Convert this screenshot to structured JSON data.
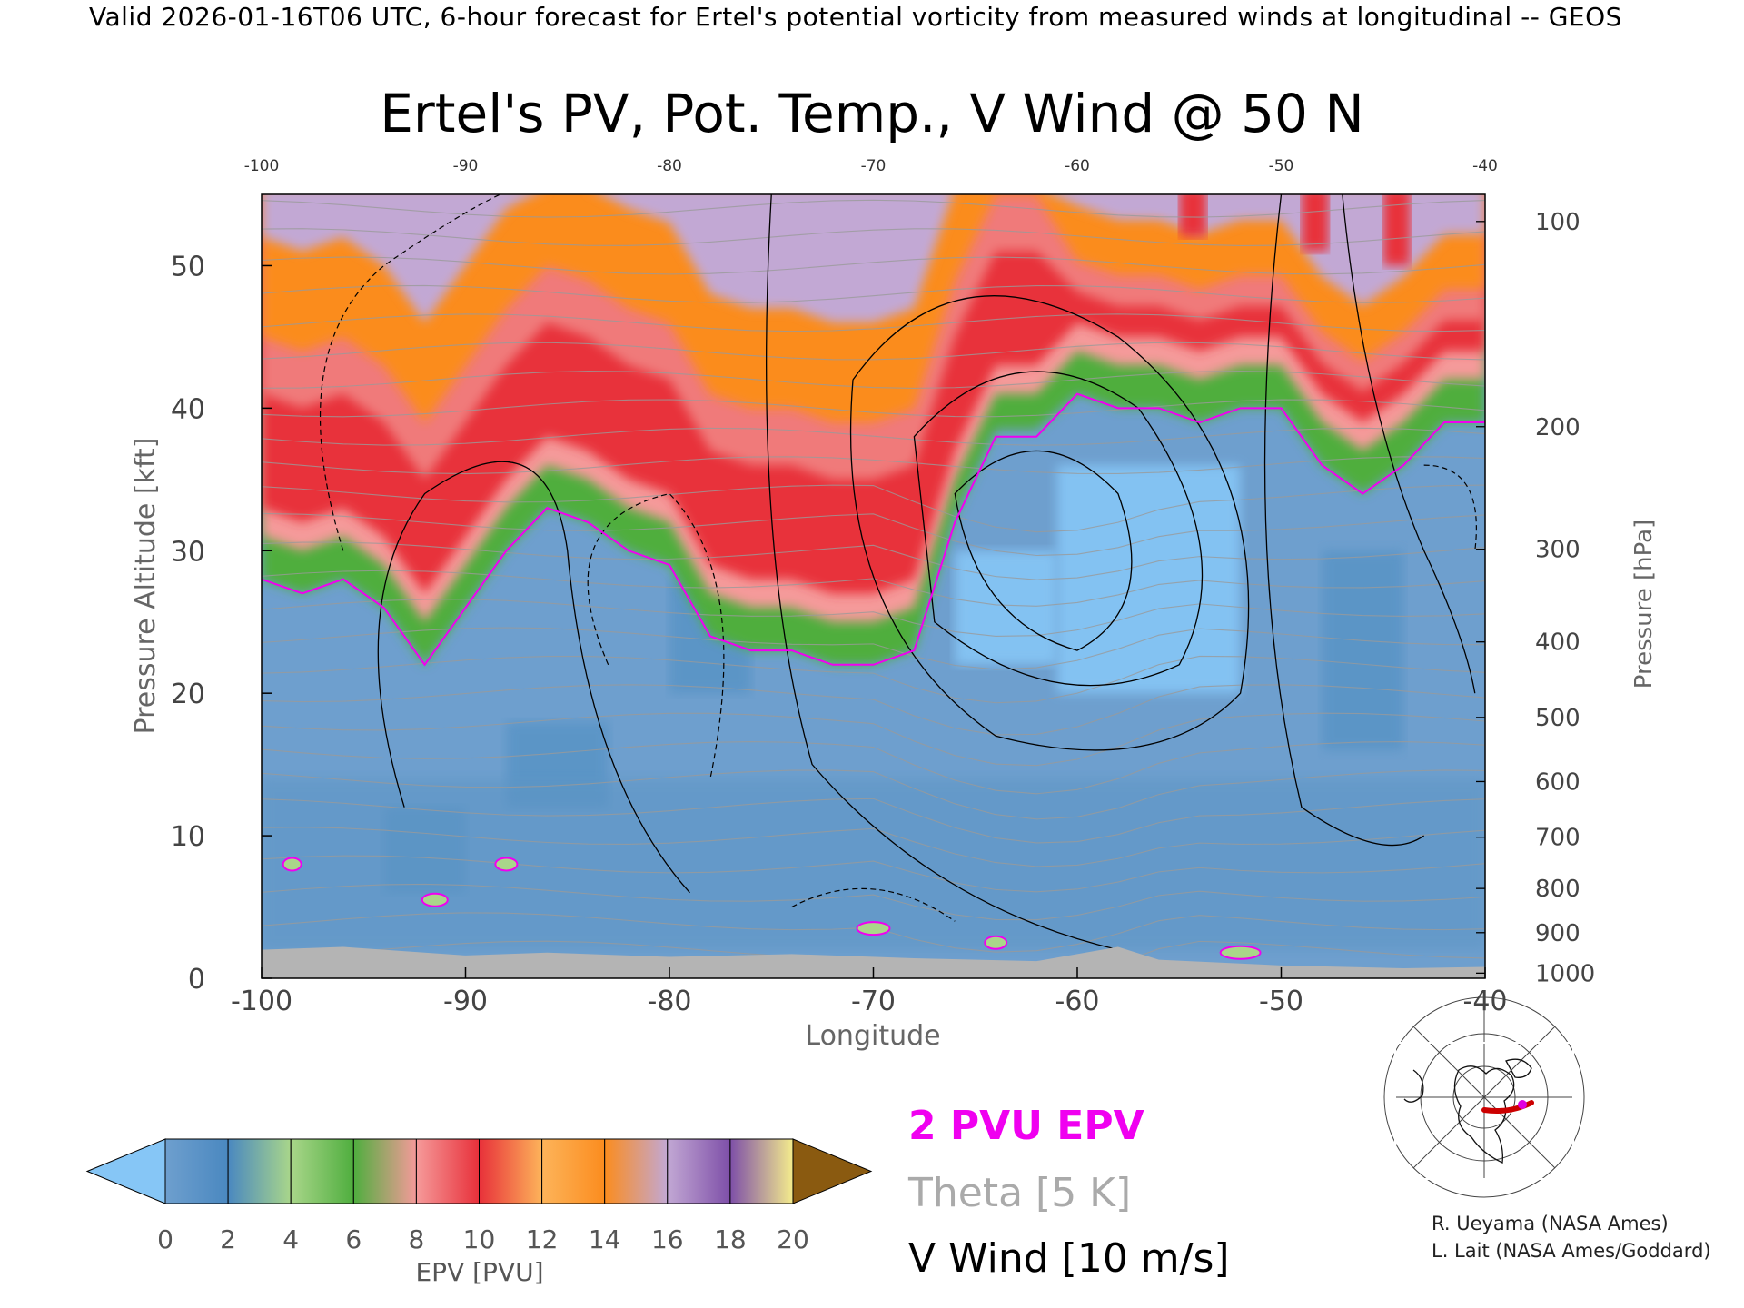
{
  "header": {
    "text": "Valid 2026-01-16T06 UTC, 6-hour forecast for Ertel's potential vorticity from measured winds at longitudinal -- GEOS"
  },
  "chart_data": {
    "type": "heatmap",
    "title": "Ertel's PV, Pot. Temp., V Wind @ 50 N",
    "xlabel": "Longitude",
    "ylabel": "Pressure Altitude [kft]",
    "y2label": "Pressure [hPa]",
    "xlim": [
      -100,
      -40
    ],
    "ylim": [
      0,
      55
    ],
    "x_ticks": [
      "-100",
      "-90",
      "-80",
      "-70",
      "-60",
      "-50",
      "-40"
    ],
    "x_ticks_top": [
      "-100",
      "-90",
      "-80",
      "-70",
      "-60",
      "-50",
      "-40"
    ],
    "y_ticks": [
      "0",
      "10",
      "20",
      "30",
      "40",
      "50"
    ],
    "pressure_ticks": [
      {
        "hPa": 1000,
        "kft": 0.36
      },
      {
        "hPa": 900,
        "kft": 3.2
      },
      {
        "hPa": 800,
        "kft": 6.3
      },
      {
        "hPa": 700,
        "kft": 9.9
      },
      {
        "hPa": 600,
        "kft": 13.8
      },
      {
        "hPa": 500,
        "kft": 18.3
      },
      {
        "hPa": 400,
        "kft": 23.6
      },
      {
        "hPa": 300,
        "kft": 30.1
      },
      {
        "hPa": 200,
        "kft": 38.7
      },
      {
        "hPa": 100,
        "kft": 53.1
      }
    ],
    "colorbar": {
      "label": "EPV [PVU]",
      "ticks": [
        "0",
        "2",
        "4",
        "6",
        "8",
        "10",
        "12",
        "14",
        "16",
        "18",
        "20"
      ],
      "colors": [
        "#6e9fce",
        "#4a88c0",
        "#a9d68a",
        "#4fae3e",
        "#f59a9a",
        "#e8303a",
        "#fdb45a",
        "#fb8c1e",
        "#c2a8d4",
        "#7e4fa8",
        "#f4ec8c"
      ],
      "under_color": "#86c6f6",
      "over_color": "#8a5a10"
    },
    "legend": [
      {
        "label": "2 PVU EPV",
        "color": "#f000f0"
      },
      {
        "label": "Theta [5 K]",
        "color": "#aaaaaa"
      },
      {
        "label": "V Wind [10 m/s]",
        "color": "#000000"
      }
    ],
    "pv2_tropopause": {
      "lon": [
        -100,
        -98,
        -96,
        -94,
        -92,
        -90,
        -88,
        -86,
        -84,
        -82,
        -80,
        -78,
        -76,
        -74,
        -72,
        -70,
        -68,
        -66,
        -64,
        -62,
        -60,
        -58,
        -56,
        -54,
        -52,
        -50,
        -48,
        -46,
        -44,
        -42,
        -40
      ],
      "kft": [
        28,
        27,
        28,
        26,
        22,
        26,
        30,
        33,
        32,
        30,
        29,
        24,
        23,
        23,
        22,
        22,
        23,
        32,
        38,
        38,
        41,
        40,
        40,
        39,
        40,
        40,
        36,
        34,
        36,
        39,
        39
      ]
    },
    "v_wind_contours": [
      "-10",
      "0",
      "10",
      "30",
      "50",
      "70"
    ],
    "annotations": [
      "2 PVU EPV",
      "Theta [5 K]",
      "V Wind [10 m/s]"
    ]
  },
  "credits": {
    "line1": "R. Ueyama (NASA Ames)",
    "line2": "L. Lait (NASA Ames/Goddard)"
  },
  "inset_map": {
    "description_icon": "polar-map-icon",
    "track_color": "#cc0000",
    "marker_color": "#e000e0"
  }
}
